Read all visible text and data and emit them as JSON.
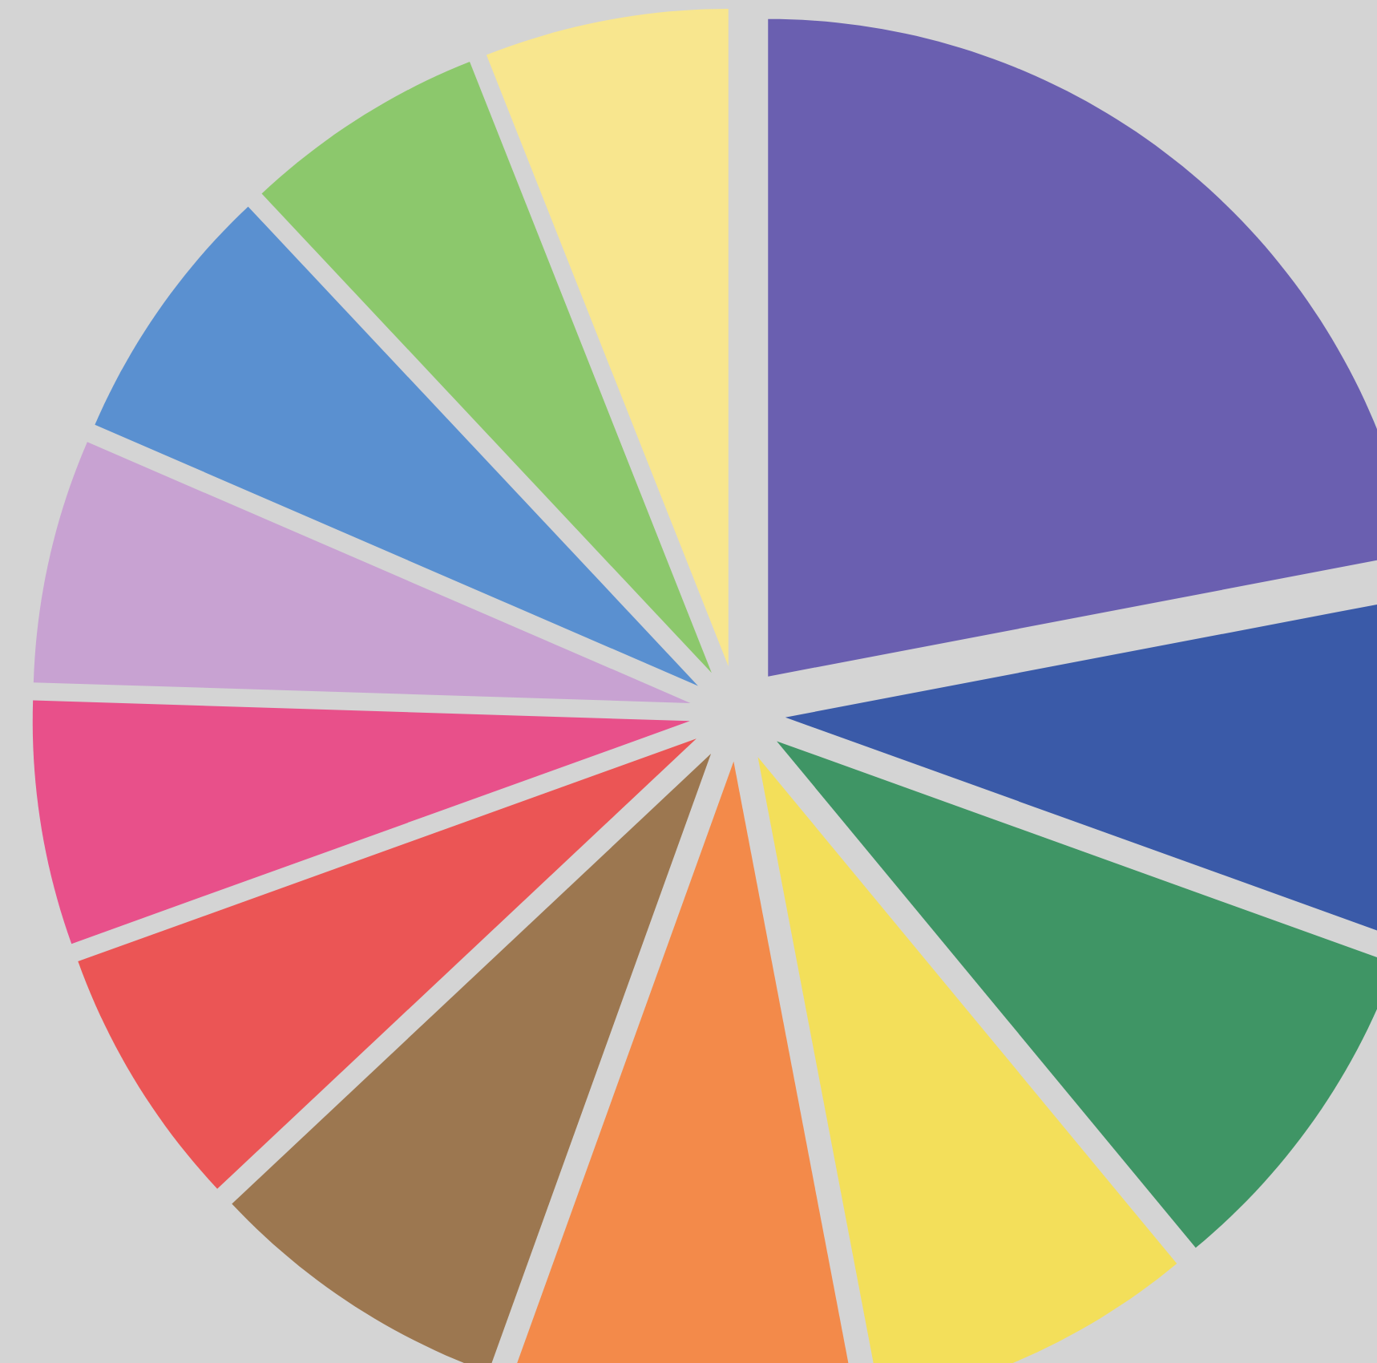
{
  "chart_data": {
    "type": "pie",
    "categories": [
      null,
      null,
      null,
      null,
      null,
      null,
      null,
      null,
      null,
      null,
      null,
      null
    ],
    "values": [
      22,
      8.5,
      8.5,
      8,
      8.5,
      7.5,
      6.5,
      6,
      6,
      6.5,
      6,
      6
    ],
    "colors": [
      "#6a5fb0",
      "#3a5aa8",
      "#3f9565",
      "#f3df5a",
      "#f38a4a",
      "#9c7750",
      "#eb5555",
      "#e8508a",
      "#c8a2d2",
      "#5a90d0",
      "#8cc86c",
      "#f8e68e"
    ]
  }
}
